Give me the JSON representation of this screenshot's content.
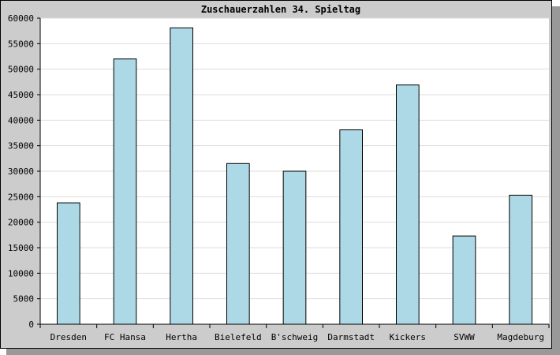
{
  "chart_data": {
    "type": "bar",
    "title": "Zuschauerzahlen 34. Spieltag",
    "xlabel": "",
    "ylabel": "",
    "categories": [
      "Dresden",
      "FC Hansa",
      "Hertha",
      "Bielefeld",
      "B'schweig",
      "Darmstadt",
      "Kickers",
      "SVWW",
      "Magdeburg"
    ],
    "values": [
      23800,
      52000,
      58100,
      31500,
      30000,
      38100,
      46900,
      17300,
      25300
    ],
    "ylim": [
      0,
      60000
    ],
    "yticks": [
      0,
      5000,
      10000,
      15000,
      20000,
      25000,
      30000,
      35000,
      40000,
      45000,
      50000,
      55000,
      60000
    ],
    "grid": true,
    "legend": "none",
    "colors": {
      "bar_fill": "#add8e6",
      "bar_stroke": "#000000",
      "plot_background": "#ffffff",
      "frame_background": "#cccccc",
      "gridline": "#dddddd"
    }
  }
}
